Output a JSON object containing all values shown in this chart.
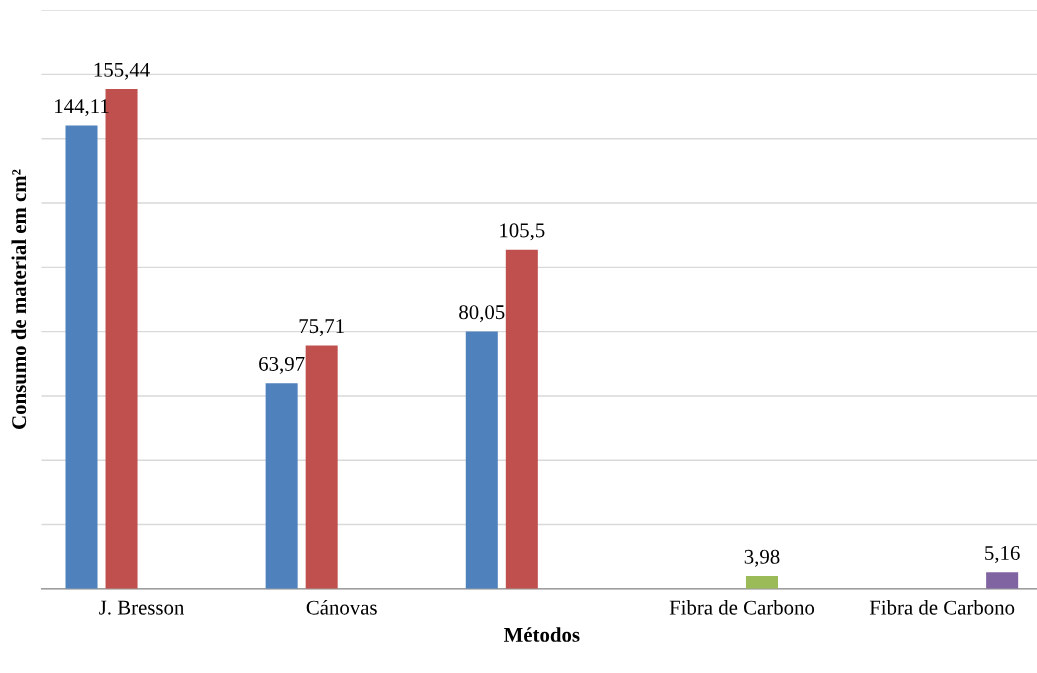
{
  "chart_data": {
    "type": "bar",
    "xlabel": "Métodos",
    "ylabel": "Consumo de material em cm²",
    "categories": [
      "J. Bresson",
      "Cánovas",
      null,
      "Fibra de Carbono",
      "Fibra de Carbono"
    ],
    "series": [
      {
        "color": "#4f81bd",
        "values": [
          144.11,
          63.97,
          80.05,
          null,
          null
        ],
        "value_labels": [
          "144,11",
          "63,97",
          "80,05",
          null,
          null
        ]
      },
      {
        "color": "#c0504d",
        "values": [
          155.44,
          75.71,
          105.5,
          null,
          null
        ],
        "value_labels": [
          "155,44",
          "75,71",
          "105,5",
          null,
          null
        ]
      },
      {
        "color": "#9bbb59",
        "values": [
          null,
          null,
          null,
          3.98,
          null
        ],
        "value_labels": [
          null,
          null,
          null,
          "3,98",
          null
        ]
      },
      {
        "color": "#8064a2",
        "values": [
          null,
          null,
          null,
          null,
          5.16
        ],
        "value_labels": [
          null,
          null,
          null,
          null,
          "5,16"
        ]
      }
    ],
    "ylim": [
      0,
      180
    ],
    "yticks": [
      {
        "value": 0,
        "label": null
      },
      {
        "value": 20,
        "label": null
      },
      {
        "value": 40,
        "label": null
      },
      {
        "value": 60,
        "label": null
      },
      {
        "value": 80,
        "label": null
      },
      {
        "value": 100,
        "label": null
      },
      {
        "value": 120,
        "label": null
      },
      {
        "value": 140,
        "label": null
      },
      {
        "value": 160,
        "label": null
      },
      {
        "value": 180,
        "label": null
      }
    ],
    "grid": "y",
    "tick_labels": "x"
  }
}
